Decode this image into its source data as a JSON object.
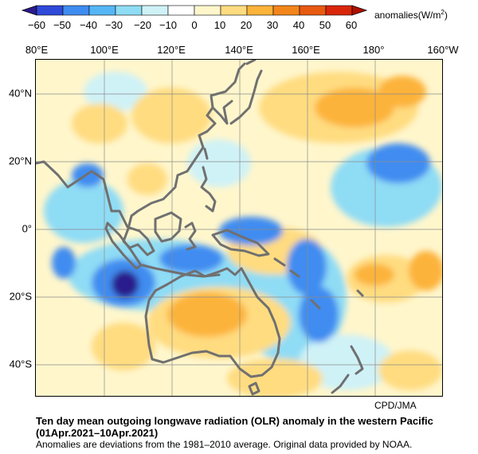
{
  "colorbar": {
    "ticks": [
      "−60",
      "−50",
      "−40",
      "−30",
      "−20",
      "−10",
      "0",
      "10",
      "20",
      "30",
      "40",
      "50",
      "60"
    ],
    "units_text": "anomalies(W/m",
    "units_sup": "2",
    "units_close": ")",
    "colors": [
      "#2a1a8c",
      "#2f49d9",
      "#3f8cf0",
      "#55b6f6",
      "#8fdcf5",
      "#cff2f7",
      "#ffffff",
      "#fff6cc",
      "#ffdc80",
      "#fcb33a",
      "#f3861a",
      "#e85a10",
      "#d9260a",
      "#b01000"
    ]
  },
  "longitudes": [
    "80°E",
    "100°E",
    "120°E",
    "140°E",
    "160°E",
    "180°",
    "160°W"
  ],
  "latitudes": [
    "40°N",
    "20°N",
    "0°",
    "20°S",
    "40°S"
  ],
  "credit": "CPD/JMA",
  "title_line1": "Ten day mean outgoing longwave radiation (OLR) anomaly in the western Pacific",
  "title_line2": "(01Apr.2021–10Apr.2021)",
  "note": "Anomalies are deviations from the 1981–2010 average. Original data provided by NOAA.",
  "map_colors": {
    "coast": "#707070",
    "grid": "#8a8a8a",
    "dark_blue": "#2a1a8c",
    "blue": "#3f8cf0",
    "light_blue": "#8fdcf5",
    "pale_blue": "#cff2f7",
    "pale_yellow": "#fff6cc",
    "yellow": "#ffdc80",
    "orange": "#fcb33a",
    "dark_orange": "#f3861a"
  }
}
